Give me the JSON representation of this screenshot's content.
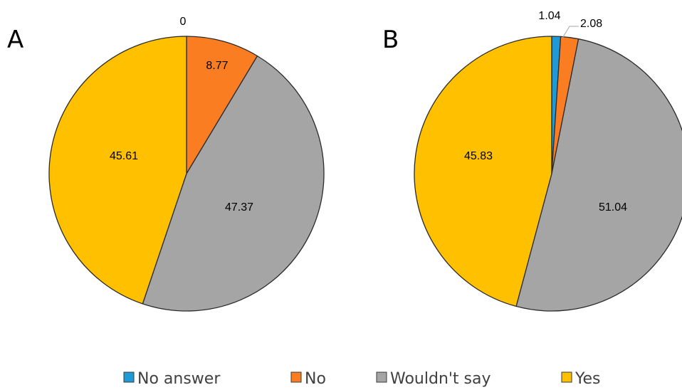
{
  "chart_data": [
    {
      "type": "pie",
      "panel_label": "A",
      "categories": [
        "No answer",
        "No",
        "Wouldn't say",
        "Yes"
      ],
      "values": [
        0,
        8.77,
        47.37,
        45.61
      ],
      "data_labels": [
        "0",
        "8.77",
        "47.37",
        "45.61"
      ]
    },
    {
      "type": "pie",
      "panel_label": "B",
      "categories": [
        "No answer",
        "No",
        "Wouldn't say",
        "Yes"
      ],
      "values": [
        1.04,
        2.08,
        51.04,
        45.83
      ],
      "data_labels": [
        "1.04",
        "2.08",
        "51.04",
        "45.83"
      ]
    }
  ],
  "legend": {
    "position": "bottom",
    "entries": [
      {
        "label": "No answer",
        "color": "#1f9ad6"
      },
      {
        "label": "No",
        "color": "#fb7d21"
      },
      {
        "label": "Wouldn't say",
        "color": "#a5a5a5"
      },
      {
        "label": "Yes",
        "color": "#ffc000"
      }
    ]
  },
  "colors": {
    "slice_border": "#2b2b2b",
    "leader_line": "#a5a5a5"
  }
}
